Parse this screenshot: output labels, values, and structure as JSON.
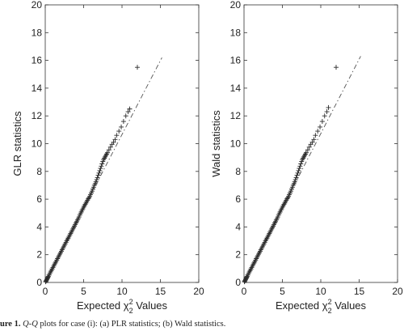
{
  "chart_data": [
    {
      "type": "scatter",
      "panel": "left",
      "xlabel_prefix": "Expected",
      "xlabel_chi": "χ",
      "xlabel_sup": "2",
      "xlabel_sub": "2",
      "xlabel_suffix": "Values",
      "ylabel": "GLR statistics",
      "xlim": [
        0,
        20
      ],
      "ylim": [
        0,
        20
      ],
      "xticks": [
        "0",
        "5",
        "10",
        "15",
        "20"
      ],
      "yticks": [
        "0",
        "2",
        "4",
        "6",
        "8",
        "10",
        "12",
        "14",
        "16",
        "18",
        "20"
      ],
      "reference_line": {
        "style": "dash-dot",
        "x": [
          0,
          15.2
        ],
        "y": [
          0,
          16.2
        ]
      },
      "marker": "+",
      "series": [
        {
          "x": [
            0.05,
            0.1,
            0.15,
            0.2,
            0.25,
            0.3,
            0.35,
            0.4,
            0.5,
            0.6,
            0.7,
            0.8,
            0.9,
            1.0,
            1.1,
            1.2,
            1.3,
            1.4,
            1.5,
            1.6,
            1.7,
            1.8,
            1.9,
            2.0,
            2.1,
            2.2,
            2.3,
            2.4,
            2.5,
            2.6,
            2.7,
            2.8,
            2.9,
            3.0,
            3.1,
            3.2,
            3.3,
            3.4,
            3.5,
            3.6,
            3.7,
            3.8,
            3.9,
            4.0,
            4.1,
            4.2,
            4.3,
            4.4,
            4.5,
            4.6,
            4.7,
            4.8,
            4.9,
            5.0,
            5.1,
            5.2,
            5.3,
            5.4,
            5.5,
            5.6,
            5.7,
            5.8,
            5.9,
            6.0,
            6.1,
            6.2,
            6.3,
            6.4,
            6.5,
            6.6,
            6.7,
            6.8,
            6.9,
            7.0,
            7.1,
            7.2,
            7.3,
            7.4,
            7.5,
            7.6,
            7.7,
            7.8,
            7.9,
            8.0,
            8.1,
            8.3,
            8.5,
            8.7,
            8.9,
            9.1,
            9.3,
            9.6,
            9.9,
            10.2,
            10.5,
            10.8,
            11.0,
            12.0
          ],
          "y": [
            0.05,
            0.1,
            0.15,
            0.2,
            0.27,
            0.32,
            0.38,
            0.43,
            0.54,
            0.65,
            0.76,
            0.86,
            0.97,
            1.08,
            1.18,
            1.29,
            1.4,
            1.5,
            1.61,
            1.72,
            1.82,
            1.93,
            2.04,
            2.14,
            2.25,
            2.36,
            2.46,
            2.57,
            2.68,
            2.78,
            2.89,
            3.0,
            3.1,
            3.2,
            3.31,
            3.42,
            3.52,
            3.63,
            3.74,
            3.85,
            3.95,
            4.06,
            4.17,
            4.28,
            4.38,
            4.5,
            4.6,
            4.72,
            4.85,
            4.97,
            5.08,
            5.2,
            5.3,
            5.42,
            5.52,
            5.62,
            5.72,
            5.82,
            5.92,
            6.02,
            6.1,
            6.2,
            6.32,
            6.45,
            6.58,
            6.72,
            6.86,
            7.0,
            7.12,
            7.25,
            7.4,
            7.55,
            7.72,
            7.88,
            8.05,
            8.22,
            8.38,
            8.55,
            8.72,
            8.85,
            8.95,
            9.05,
            9.15,
            9.25,
            9.35,
            9.55,
            9.75,
            9.95,
            10.1,
            10.3,
            10.6,
            10.9,
            11.2,
            11.6,
            12.0,
            12.3,
            12.5,
            15.5
          ]
        }
      ]
    },
    {
      "type": "scatter",
      "panel": "right",
      "xlabel_prefix": "Expected",
      "xlabel_chi": "χ",
      "xlabel_sup": "2",
      "xlabel_sub": "2",
      "xlabel_suffix": "Values",
      "ylabel": "Wald statistics",
      "xlim": [
        0,
        20
      ],
      "ylim": [
        0,
        20
      ],
      "xticks": [
        "0",
        "5",
        "10",
        "15",
        "20"
      ],
      "yticks": [
        "0",
        "2",
        "4",
        "6",
        "8",
        "10",
        "12",
        "14",
        "16",
        "18",
        "20"
      ],
      "reference_line": {
        "style": "dash-dot",
        "x": [
          0,
          15.2
        ],
        "y": [
          0,
          16.3
        ]
      },
      "marker": "+",
      "series": [
        {
          "x": [
            0.05,
            0.1,
            0.15,
            0.2,
            0.25,
            0.3,
            0.35,
            0.4,
            0.5,
            0.6,
            0.7,
            0.8,
            0.9,
            1.0,
            1.1,
            1.2,
            1.3,
            1.4,
            1.5,
            1.6,
            1.7,
            1.8,
            1.9,
            2.0,
            2.1,
            2.2,
            2.3,
            2.4,
            2.5,
            2.6,
            2.7,
            2.8,
            2.9,
            3.0,
            3.1,
            3.2,
            3.3,
            3.4,
            3.5,
            3.6,
            3.7,
            3.8,
            3.9,
            4.0,
            4.1,
            4.2,
            4.3,
            4.4,
            4.5,
            4.6,
            4.7,
            4.8,
            4.9,
            5.0,
            5.1,
            5.2,
            5.3,
            5.4,
            5.5,
            5.6,
            5.7,
            5.8,
            5.9,
            6.0,
            6.1,
            6.2,
            6.3,
            6.4,
            6.5,
            6.6,
            6.7,
            6.8,
            6.9,
            7.0,
            7.1,
            7.2,
            7.3,
            7.4,
            7.5,
            7.6,
            7.7,
            7.8,
            7.9,
            8.0,
            8.1,
            8.3,
            8.5,
            8.7,
            8.9,
            9.1,
            9.3,
            9.6,
            9.9,
            10.2,
            10.5,
            10.8,
            11.0,
            12.0
          ],
          "y": [
            0.05,
            0.1,
            0.15,
            0.2,
            0.27,
            0.32,
            0.38,
            0.43,
            0.54,
            0.65,
            0.76,
            0.86,
            0.97,
            1.08,
            1.18,
            1.29,
            1.4,
            1.5,
            1.61,
            1.72,
            1.82,
            1.93,
            2.04,
            2.14,
            2.25,
            2.36,
            2.46,
            2.57,
            2.68,
            2.78,
            2.89,
            3.0,
            3.1,
            3.2,
            3.31,
            3.42,
            3.52,
            3.63,
            3.74,
            3.85,
            3.95,
            4.06,
            4.17,
            4.28,
            4.38,
            4.5,
            4.6,
            4.72,
            4.85,
            4.97,
            5.08,
            5.2,
            5.3,
            5.42,
            5.52,
            5.62,
            5.72,
            5.82,
            5.92,
            6.02,
            6.1,
            6.2,
            6.32,
            6.45,
            6.58,
            6.72,
            6.86,
            7.0,
            7.12,
            7.25,
            7.4,
            7.55,
            7.72,
            7.88,
            8.05,
            8.22,
            8.38,
            8.55,
            8.72,
            8.85,
            8.95,
            9.05,
            9.15,
            9.25,
            9.35,
            9.55,
            9.75,
            9.95,
            10.1,
            10.3,
            10.6,
            10.9,
            11.2,
            11.6,
            12.0,
            12.3,
            12.6,
            15.5
          ]
        }
      ]
    }
  ],
  "caption": {
    "label": "ure 1.",
    "qq": "Q-Q",
    "text": " plots for case (i): (a) PLR statistics; (b) Wald statistics."
  },
  "colors": {
    "marker": "#2a2a2a",
    "axis": "#333333",
    "refline": "#555555"
  }
}
